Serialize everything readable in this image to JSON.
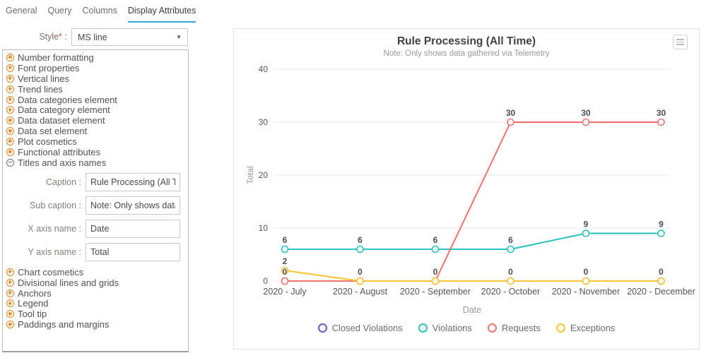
{
  "tabs": {
    "items": [
      {
        "label": "General"
      },
      {
        "label": "Query"
      },
      {
        "label": "Columns"
      },
      {
        "label": "Display Attributes"
      }
    ],
    "active": "Display Attributes"
  },
  "style_field": {
    "label": "Style",
    "required_mark": "*",
    "colon": " :",
    "value": "MS line"
  },
  "tree": {
    "items_before": [
      {
        "label": "Number formatting"
      },
      {
        "label": "Font properties"
      },
      {
        "label": "Vertical lines"
      },
      {
        "label": "Trend lines"
      },
      {
        "label": "Data categories element"
      },
      {
        "label": "Data category element"
      },
      {
        "label": "Data dataset element"
      },
      {
        "label": "Data set element"
      },
      {
        "label": "Plot cosmetics"
      },
      {
        "label": "Functional attributes"
      }
    ],
    "expanded_item": {
      "label": "Titles and axis names"
    },
    "fields": [
      {
        "label": "Caption :",
        "value": "Rule Processing (All Time)"
      },
      {
        "label": "Sub caption :",
        "value": "Note: Only shows data gathered via Telemetry"
      },
      {
        "label": "X axis name :",
        "value": "Date"
      },
      {
        "label": "Y axis name :",
        "value": "Total"
      }
    ],
    "items_after": [
      {
        "label": "Chart cosmetics"
      },
      {
        "label": "Divisional lines and grids"
      },
      {
        "label": "Anchors"
      },
      {
        "label": "Legend"
      },
      {
        "label": "Tool tip"
      },
      {
        "label": "Paddings and margins"
      }
    ]
  },
  "chart_data": {
    "type": "line",
    "title": "Rule Processing (All Time)",
    "subtitle": "Note: Only shows data gathered via Telemetry",
    "xlabel": "Date",
    "ylabel": "Total",
    "ylim": [
      0,
      40
    ],
    "yticks": [
      0,
      10,
      20,
      30,
      40
    ],
    "grid": true,
    "legend_position": "bottom",
    "categories": [
      "2020 - July",
      "2020 - August",
      "2020 - September",
      "2020 - October",
      "2020 - November",
      "2020 - December"
    ],
    "series": [
      {
        "name": "Closed Violations",
        "color": "#5d62b5",
        "values": [
          0,
          0,
          0,
          0,
          0,
          0
        ]
      },
      {
        "name": "Violations",
        "color": "#29c3be",
        "values": [
          6,
          6,
          6,
          6,
          9,
          9
        ]
      },
      {
        "name": "Requests",
        "color": "#f2726f",
        "values": [
          0,
          0,
          0,
          30,
          30,
          30
        ]
      },
      {
        "name": "Exceptions",
        "color": "#ffc533",
        "values": [
          2,
          0,
          0,
          0,
          0,
          0
        ]
      }
    ],
    "colors": {
      "gridline": "#e9e9e9",
      "axis_text": "#555555",
      "axis_name_text": "#999999",
      "title_text": "#424242",
      "subtitle_text": "#9b9b9b"
    }
  }
}
